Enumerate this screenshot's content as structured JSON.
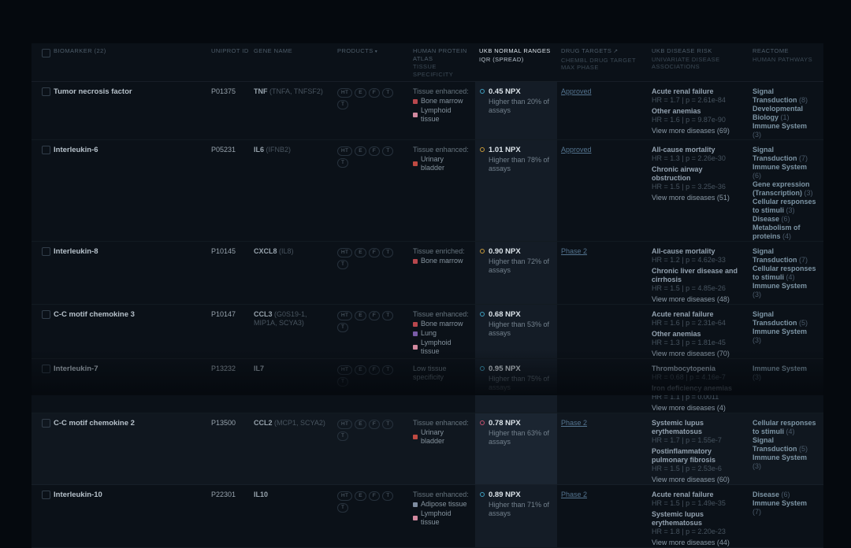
{
  "header": {
    "biomarker": "BIOMARKER (22)",
    "uniprot": "UNIPROT ID",
    "gene": "GENE NAME",
    "products": "PRODUCTS",
    "products_caret": "▾",
    "hpa": "HUMAN PROTEIN ATLAS",
    "hpa_sub": "TISSUE SPECIFICITY",
    "npx": "UKB NORMAL RANGES",
    "npx_sub": "IQR (SPREAD)",
    "drug": "DRUG TARGETS",
    "drug_icon": "↗",
    "drug_sub": "CHEMBL DRUG TARGET MAX PHASE",
    "risk": "UKB DISEASE RISK",
    "risk_sub": "UNIVARIATE DISEASE ASSOCIATIONS",
    "reactome": "REACTOME",
    "reactome_sub": "HUMAN PATHWAYS"
  },
  "colors": {
    "dot_blue": "#3f9fbf",
    "dot_yellow": "#c79a3a",
    "dot_red": "#c5516f"
  },
  "rows": [
    {
      "biomarker": "Tumor necrosis factor",
      "uniprot": "P01375",
      "gene": "TNF",
      "gene_aliases": "(TNFA, TNFSF2)",
      "products": [
        "HT",
        "E",
        "F",
        "T",
        "T"
      ],
      "tissue_label": "Tissue enhanced:",
      "tissues": [
        {
          "name": "Bone marrow",
          "color": "#b8474d"
        },
        {
          "name": "Lymphoid tissue",
          "color": "#d2899f"
        }
      ],
      "npx_value": "0.45 NPX",
      "npx_desc": "Higher than 20% of assays",
      "npx_dot_color": "#3f9fbf",
      "drug_phase": "Approved",
      "diseases": [
        {
          "name": "Acute renal failure",
          "stat": "HR = 1.7 | p = 2.61e-84"
        },
        {
          "name": "Other anemias",
          "stat": "HR = 1.6 | p = 9.87e-90"
        }
      ],
      "view_more": "View more diseases (69)",
      "pathways": [
        {
          "name": "Signal Transduction",
          "count": "(8)"
        },
        {
          "name": "Developmental Biology",
          "count": "(1)"
        },
        {
          "name": "Immune System",
          "count": "(3)"
        }
      ],
      "highlighted": false
    },
    {
      "biomarker": "Interleukin-6",
      "uniprot": "P05231",
      "gene": "IL6",
      "gene_aliases": "(IFNB2)",
      "products": [
        "HT",
        "E",
        "F",
        "T",
        "T"
      ],
      "tissue_label": "Tissue enhanced:",
      "tissues": [
        {
          "name": "Urinary bladder",
          "color": "#bf4a42"
        }
      ],
      "npx_value": "1.01 NPX",
      "npx_desc": "Higher than 78% of assays",
      "npx_dot_color": "#c79a3a",
      "drug_phase": "Approved",
      "diseases": [
        {
          "name": "All-cause mortality",
          "stat": "HR = 1.3 | p = 2.26e-30"
        },
        {
          "name": "Chronic airway obstruction",
          "stat": "HR = 1.5 | p = 3.25e-36"
        }
      ],
      "view_more": "View more diseases (51)",
      "pathways": [
        {
          "name": "Signal Transduction",
          "count": "(7)"
        },
        {
          "name": "Immune System",
          "count": "(6)"
        },
        {
          "name": "Gene expression (Transcription)",
          "count": "(3)"
        },
        {
          "name": "Cellular responses to stimuli",
          "count": "(3)"
        },
        {
          "name": "Disease",
          "count": "(6)"
        },
        {
          "name": "Metabolism of proteins",
          "count": "(4)"
        }
      ],
      "highlighted": false
    },
    {
      "biomarker": "Interleukin-8",
      "uniprot": "P10145",
      "gene": "CXCL8",
      "gene_aliases": "(IL8)",
      "products": [
        "HT",
        "E",
        "F",
        "T",
        "T"
      ],
      "tissue_label": "Tissue enriched:",
      "tissues": [
        {
          "name": "Bone marrow",
          "color": "#b8474d"
        }
      ],
      "npx_value": "0.90 NPX",
      "npx_desc": "Higher than 72% of assays",
      "npx_dot_color": "#c79a3a",
      "drug_phase": "Phase 2",
      "diseases": [
        {
          "name": "All-cause mortality",
          "stat": "HR = 1.2 | p = 4.62e-33"
        },
        {
          "name": "Chronic liver disease and cirrhosis",
          "stat": "HR = 1.5 | p = 4.85e-26"
        }
      ],
      "view_more": "View more diseases (48)",
      "pathways": [
        {
          "name": "Signal Transduction",
          "count": "(7)"
        },
        {
          "name": "Cellular responses to stimuli",
          "count": "(4)"
        },
        {
          "name": "Immune System",
          "count": "(3)"
        }
      ],
      "highlighted": false
    },
    {
      "biomarker": "C-C motif chemokine 3",
      "uniprot": "P10147",
      "gene": "CCL3",
      "gene_aliases": "(G0S19-1, MIP1A, SCYA3)",
      "products": [
        "HT",
        "E",
        "F",
        "T",
        "T"
      ],
      "tissue_label": "Tissue enhanced:",
      "tissues": [
        {
          "name": "Bone marrow",
          "color": "#b8474d"
        },
        {
          "name": "Lung",
          "color": "#7a5ca8"
        },
        {
          "name": "Lymphoid tissue",
          "color": "#d2899f"
        }
      ],
      "npx_value": "0.68 NPX",
      "npx_desc": "Higher than 53% of assays",
      "npx_dot_color": "#3f9fbf",
      "drug_phase": "",
      "diseases": [
        {
          "name": "Acute renal failure",
          "stat": "HR = 1.6 | p = 2.31e-64"
        },
        {
          "name": "Other anemias",
          "stat": "HR = 1.3 | p = 1.81e-45"
        }
      ],
      "view_more": "View more diseases (70)",
      "pathways": [
        {
          "name": "Signal Transduction",
          "count": "(5)"
        },
        {
          "name": "Immune System",
          "count": "(3)"
        }
      ],
      "highlighted": false
    },
    {
      "biomarker": "Interleukin-7",
      "uniprot": "P13232",
      "gene": "IL7",
      "gene_aliases": "",
      "products": [
        "HT",
        "E",
        "F",
        "T",
        "T"
      ],
      "tissue_label": "Low tissue specificity",
      "tissues": [],
      "npx_value": "0.95 NPX",
      "npx_desc": "Higher than 75% of assays",
      "npx_dot_color": "#3f9fbf",
      "drug_phase": "",
      "diseases": [
        {
          "name": "Thrombocytopenia",
          "stat": "HR = 0.68 | p = 4.16e-7"
        },
        {
          "name": "Iron deficiency anemias",
          "stat": "HR = 1.1 | p = 0.0011"
        }
      ],
      "view_more": "View more diseases (4)",
      "pathways": [
        {
          "name": "Immune System",
          "count": "(3)"
        }
      ],
      "highlighted": false
    },
    {
      "biomarker": "C-C motif chemokine 2",
      "uniprot": "P13500",
      "gene": "CCL2",
      "gene_aliases": "(MCP1, SCYA2)",
      "products": [
        "HT",
        "E",
        "F",
        "T",
        "T"
      ],
      "tissue_label": "Tissue enhanced:",
      "tissues": [
        {
          "name": "Urinary bladder",
          "color": "#bf4a42"
        }
      ],
      "npx_value": "0.78 NPX",
      "npx_desc": "Higher than 63% of assays",
      "npx_dot_color": "#c5516f",
      "drug_phase": "Phase 2",
      "diseases": [
        {
          "name": "Systemic lupus erythematosus",
          "stat": "HR = 1.7 | p = 1.55e-7"
        },
        {
          "name": "Postinflammatory pulmonary fibrosis",
          "stat": "HR = 1.5 | p = 2.53e-6"
        }
      ],
      "view_more": "View more diseases (60)",
      "pathways": [
        {
          "name": "Cellular responses to stimuli",
          "count": "(4)"
        },
        {
          "name": "Signal Transduction",
          "count": "(5)"
        },
        {
          "name": "Immune System",
          "count": "(3)"
        }
      ],
      "highlighted": true
    },
    {
      "biomarker": "Interleukin-10",
      "uniprot": "P22301",
      "gene": "IL10",
      "gene_aliases": "",
      "products": [
        "HT",
        "E",
        "F",
        "T",
        "T"
      ],
      "tissue_label": "Tissue enhanced:",
      "tissues": [
        {
          "name": "Adipose tissue",
          "color": "#7f8da0"
        },
        {
          "name": "Lymphoid tissue",
          "color": "#d2899f"
        }
      ],
      "npx_value": "0.89 NPX",
      "npx_desc": "Higher than 71% of assays",
      "npx_dot_color": "#3f9fbf",
      "drug_phase": "Phase 2",
      "diseases": [
        {
          "name": "Acute renal failure",
          "stat": "HR = 1.5 | p = 1.49e-35"
        },
        {
          "name": "Systemic lupus erythematosus",
          "stat": "HR = 1.8 | p = 2.20e-23"
        }
      ],
      "view_more": "View more diseases (44)",
      "pathways": [
        {
          "name": "Disease",
          "count": "(6)"
        },
        {
          "name": "Immune System",
          "count": "(7)"
        }
      ],
      "highlighted": false
    }
  ]
}
